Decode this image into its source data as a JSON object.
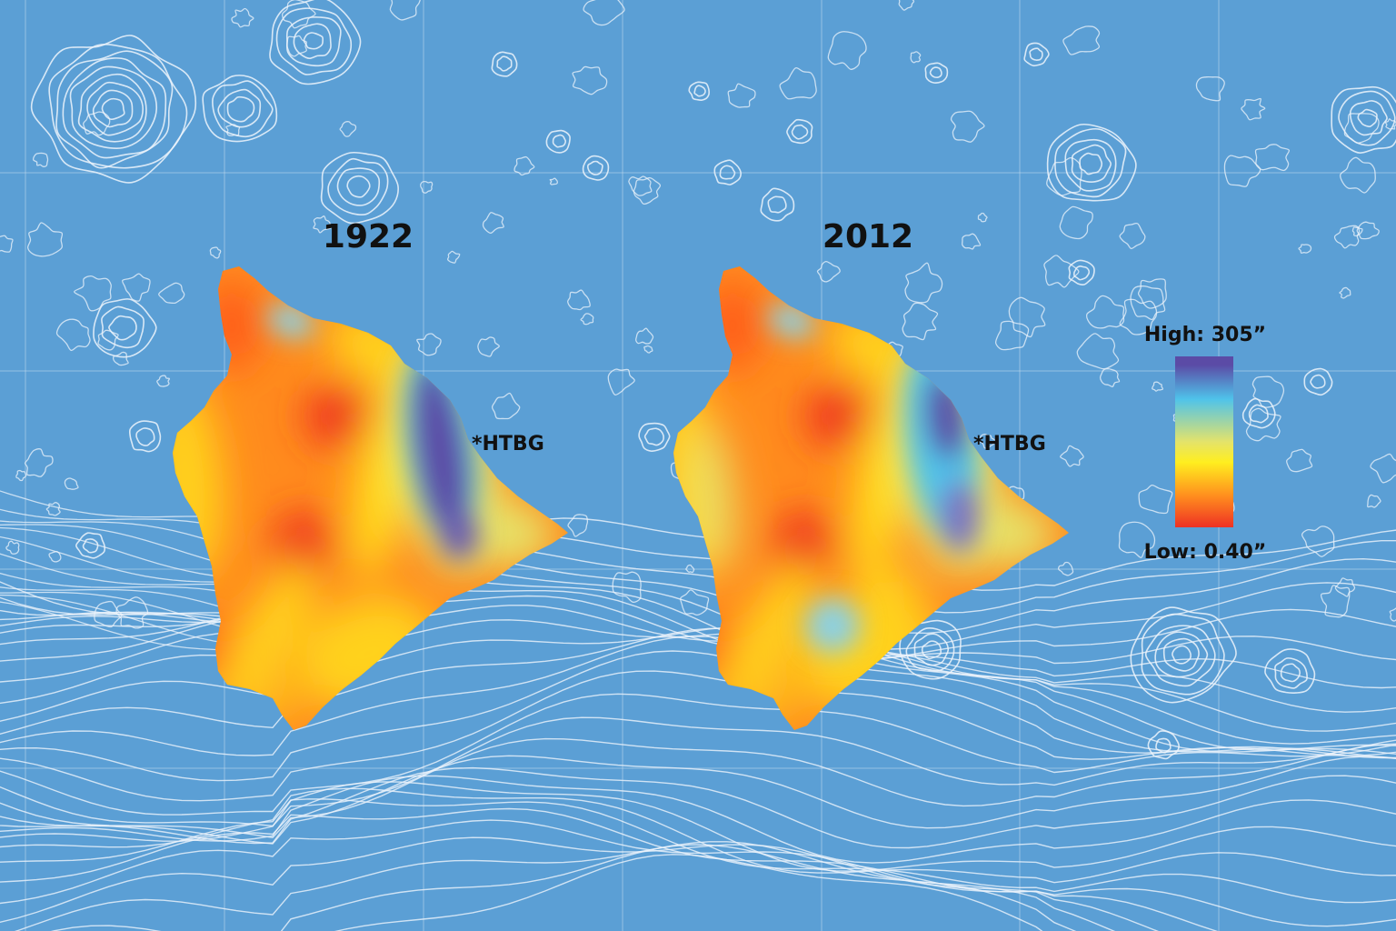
{
  "maps": [
    {
      "year": "1922",
      "marker_label": "*HTBG"
    },
    {
      "year": "2012",
      "marker_label": "*HTBG"
    }
  ],
  "legend": {
    "high_label": "High: 305”",
    "low_label": "Low: 0.40”",
    "high_value": 305,
    "low_value": 0.4,
    "unit": "in",
    "stops": [
      "#5b4ba6",
      "#4fc3ea",
      "#e4e36a",
      "#ffee1f",
      "#ff8c1e",
      "#ee3124"
    ]
  },
  "colors": {
    "ocean": "#5b9fd5",
    "contour": "#eef4fb",
    "text": "#111111"
  }
}
